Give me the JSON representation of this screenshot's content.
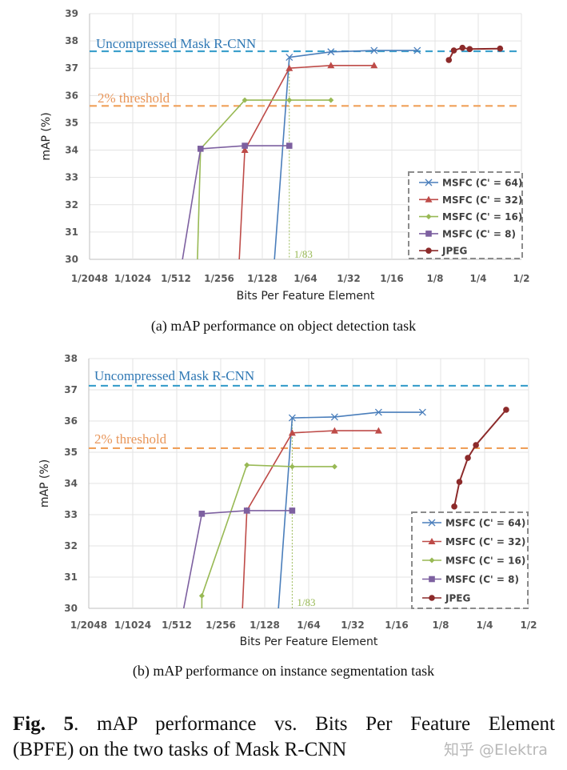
{
  "figure_caption": {
    "label": "Fig. 5",
    "line1": "mAP performance vs.  Bits Per Feature Element",
    "line2": "(BPFE) on the two tasks of Mask R-CNN"
  },
  "watermark": "知乎 @Elektra",
  "colors": {
    "msfc64": "#4a7ebb",
    "msfc32": "#be4b48",
    "msfc16": "#98b954",
    "msfc8": "#7d60a0",
    "jpeg": "#8c2a2a",
    "uncompressed": "#3a9fcb",
    "threshold": "#f0a05a"
  },
  "chart_data": [
    {
      "type": "line",
      "caption": "(a)  mAP performance on object detection task",
      "xlabel": "Bits Per Feature Element",
      "ylabel": "mAP (%)",
      "xscale": "log2",
      "xlim": [
        0.00048828125,
        0.5
      ],
      "xticks": [
        "1/2048",
        "1/1024",
        "1/512",
        "1/256",
        "1/128",
        "1/64",
        "1/32",
        "1/16",
        "1/8",
        "1/4",
        "1/2"
      ],
      "ylim": [
        30,
        39
      ],
      "yticks": [
        30,
        31,
        32,
        33,
        34,
        35,
        36,
        37,
        38,
        39
      ],
      "grid": true,
      "legend": "bottom-right",
      "reference_lines": [
        {
          "label": "Uncompressed Mask R-CNN",
          "y": 37.62,
          "color_key": "uncompressed"
        },
        {
          "label": "2% threshold",
          "y": 35.62,
          "color_key": "threshold"
        }
      ],
      "annotation": {
        "text": "1/83",
        "x": 0.01205
      },
      "series": [
        {
          "name": "MSFC (C' = 64)",
          "color_key": "msfc64",
          "marker": "x",
          "x": [
            0.0095,
            0.01205,
            0.0235,
            0.047,
            0.094
          ],
          "y": [
            30,
            37.4,
            37.6,
            37.65,
            37.65
          ]
        },
        {
          "name": "MSFC (C' = 32)",
          "color_key": "msfc32",
          "marker": "triangle",
          "x": [
            0.0054,
            0.0059,
            0.01205,
            0.0235,
            0.047
          ],
          "y": [
            30,
            34.0,
            37.0,
            37.1,
            37.1
          ]
        },
        {
          "name": "MSFC (C' = 16)",
          "color_key": "msfc16",
          "marker": "diamond",
          "x": [
            0.00276,
            0.0029,
            0.0059,
            0.01205,
            0.0235
          ],
          "y": [
            30,
            34.05,
            35.83,
            35.83,
            35.83
          ]
        },
        {
          "name": "MSFC (C' = 8)",
          "color_key": "msfc8",
          "marker": "square",
          "x": [
            0.00217,
            0.0029,
            0.0059,
            0.01205
          ],
          "y": [
            30,
            34.05,
            34.16,
            34.16
          ]
        },
        {
          "name": "JPEG",
          "color_key": "jpeg",
          "marker": "circle",
          "x": [
            0.156,
            0.169,
            0.194,
            0.218,
            0.355
          ],
          "y": [
            37.3,
            37.65,
            37.75,
            37.7,
            37.72
          ]
        }
      ]
    },
    {
      "type": "line",
      "caption": "(b)  mAP performance on instance segmentation task",
      "xlabel": "Bits Per Feature Element",
      "ylabel": "mAP (%)",
      "xscale": "log2",
      "xlim": [
        0.00048828125,
        0.5
      ],
      "xticks": [
        "1/2048",
        "1/1024",
        "1/512",
        "1/256",
        "1/128",
        "1/64",
        "1/32",
        "1/16",
        "1/8",
        "1/4",
        "1/2"
      ],
      "ylim": [
        30,
        38
      ],
      "yticks": [
        30,
        31,
        32,
        33,
        34,
        35,
        36,
        37,
        38
      ],
      "grid": true,
      "legend": "bottom-right",
      "reference_lines": [
        {
          "label": "Uncompressed Mask R-CNN",
          "y": 37.13,
          "color_key": "uncompressed"
        },
        {
          "label": "2% threshold",
          "y": 35.13,
          "color_key": "threshold"
        }
      ],
      "annotation": {
        "text": "1/83",
        "x": 0.01205
      },
      "series": [
        {
          "name": "MSFC (C' = 64)",
          "color_key": "msfc64",
          "marker": "x",
          "x": [
            0.0097,
            0.01205,
            0.0235,
            0.047,
            0.094
          ],
          "y": [
            30,
            36.1,
            36.13,
            36.28,
            36.28
          ]
        },
        {
          "name": "MSFC (C' = 32)",
          "color_key": "msfc32",
          "marker": "triangle",
          "x": [
            0.0055,
            0.0059,
            0.01205,
            0.0235,
            0.047
          ],
          "y": [
            30,
            33.13,
            35.62,
            35.69,
            35.69
          ]
        },
        {
          "name": "MSFC (C' = 16)",
          "color_key": "msfc16",
          "marker": "diamond",
          "x": [
            0.0029,
            0.0029,
            0.0059,
            0.01205,
            0.0235
          ],
          "y": [
            30,
            30.4,
            34.59,
            34.54,
            34.54
          ]
        },
        {
          "name": "MSFC (C' = 8)",
          "color_key": "msfc8",
          "marker": "square",
          "x": [
            0.00218,
            0.0029,
            0.0059,
            0.01205
          ],
          "y": [
            30,
            33.03,
            33.13,
            33.13
          ]
        },
        {
          "name": "JPEG",
          "color_key": "jpeg",
          "marker": "circle",
          "x": [
            0.155,
            0.168,
            0.192,
            0.218,
            0.351
          ],
          "y": [
            33.26,
            34.05,
            34.82,
            35.23,
            36.36
          ]
        }
      ]
    }
  ]
}
